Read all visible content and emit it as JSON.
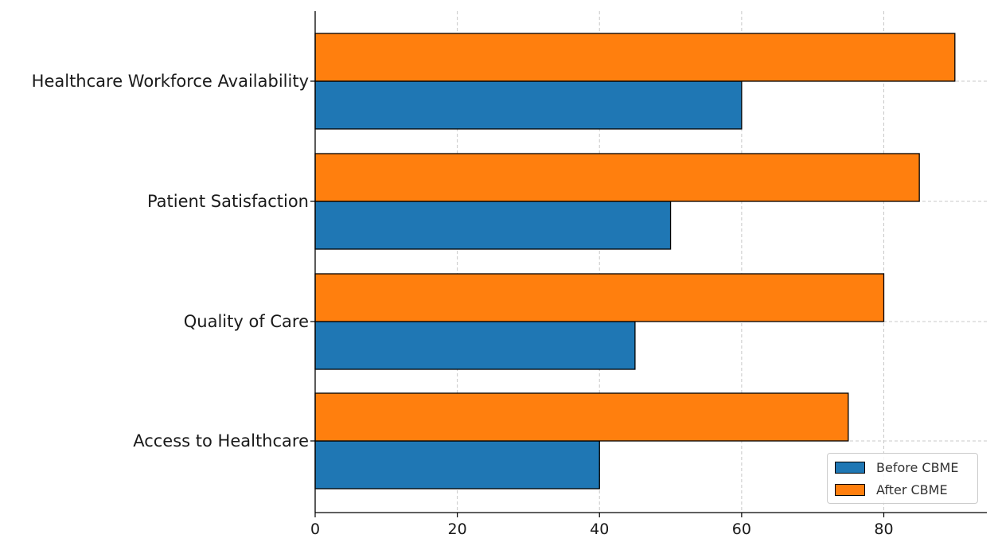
{
  "chart_data": {
    "type": "bar",
    "orientation": "horizontal",
    "categories": [
      "Access to Healthcare",
      "Quality of Care",
      "Patient Satisfaction",
      "Healthcare Workforce Availability"
    ],
    "series": [
      {
        "name": "Before CBME",
        "color": "#1f77b4",
        "values": [
          40,
          45,
          50,
          60
        ]
      },
      {
        "name": "After CBME",
        "color": "#ff7f0e",
        "values": [
          75,
          80,
          85,
          90
        ]
      }
    ],
    "x_ticks": [
      "0",
      "20",
      "40",
      "60",
      "80"
    ],
    "xlim": [
      0,
      94.5
    ],
    "grid": true,
    "legend_position": "bottom-right",
    "title": "",
    "xlabel": "",
    "ylabel": ""
  }
}
